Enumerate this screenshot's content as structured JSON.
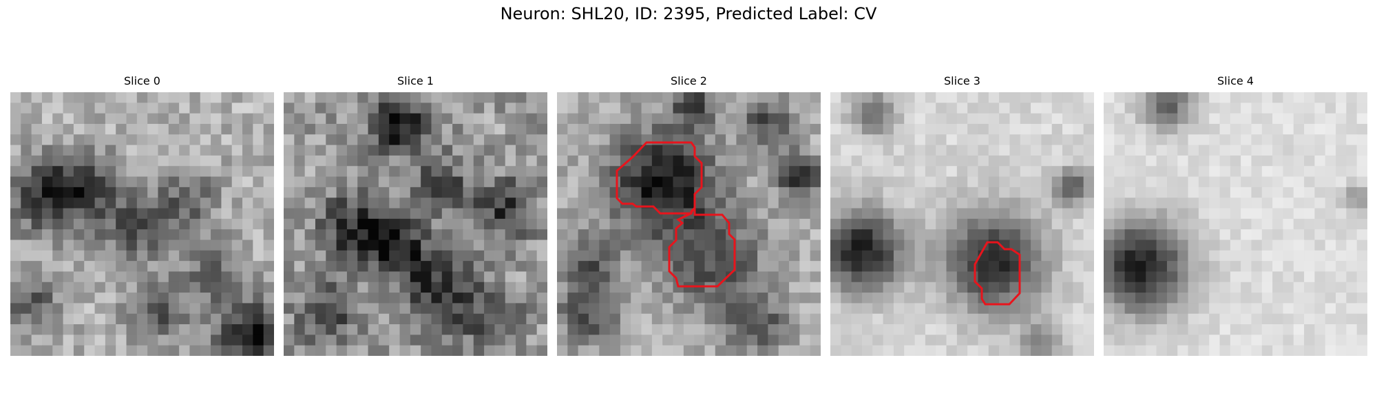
{
  "figure": {
    "title": "Neuron: SHL20, ID: 2395, Predicted Label: CV"
  },
  "panels": [
    {
      "title": "Slice 0"
    },
    {
      "title": "Slice 1"
    },
    {
      "title": "Slice 2"
    },
    {
      "title": "Slice 3"
    },
    {
      "title": "Slice 4"
    }
  ],
  "colors": {
    "contour": "#e8141c",
    "colormap": "grayscale"
  }
}
